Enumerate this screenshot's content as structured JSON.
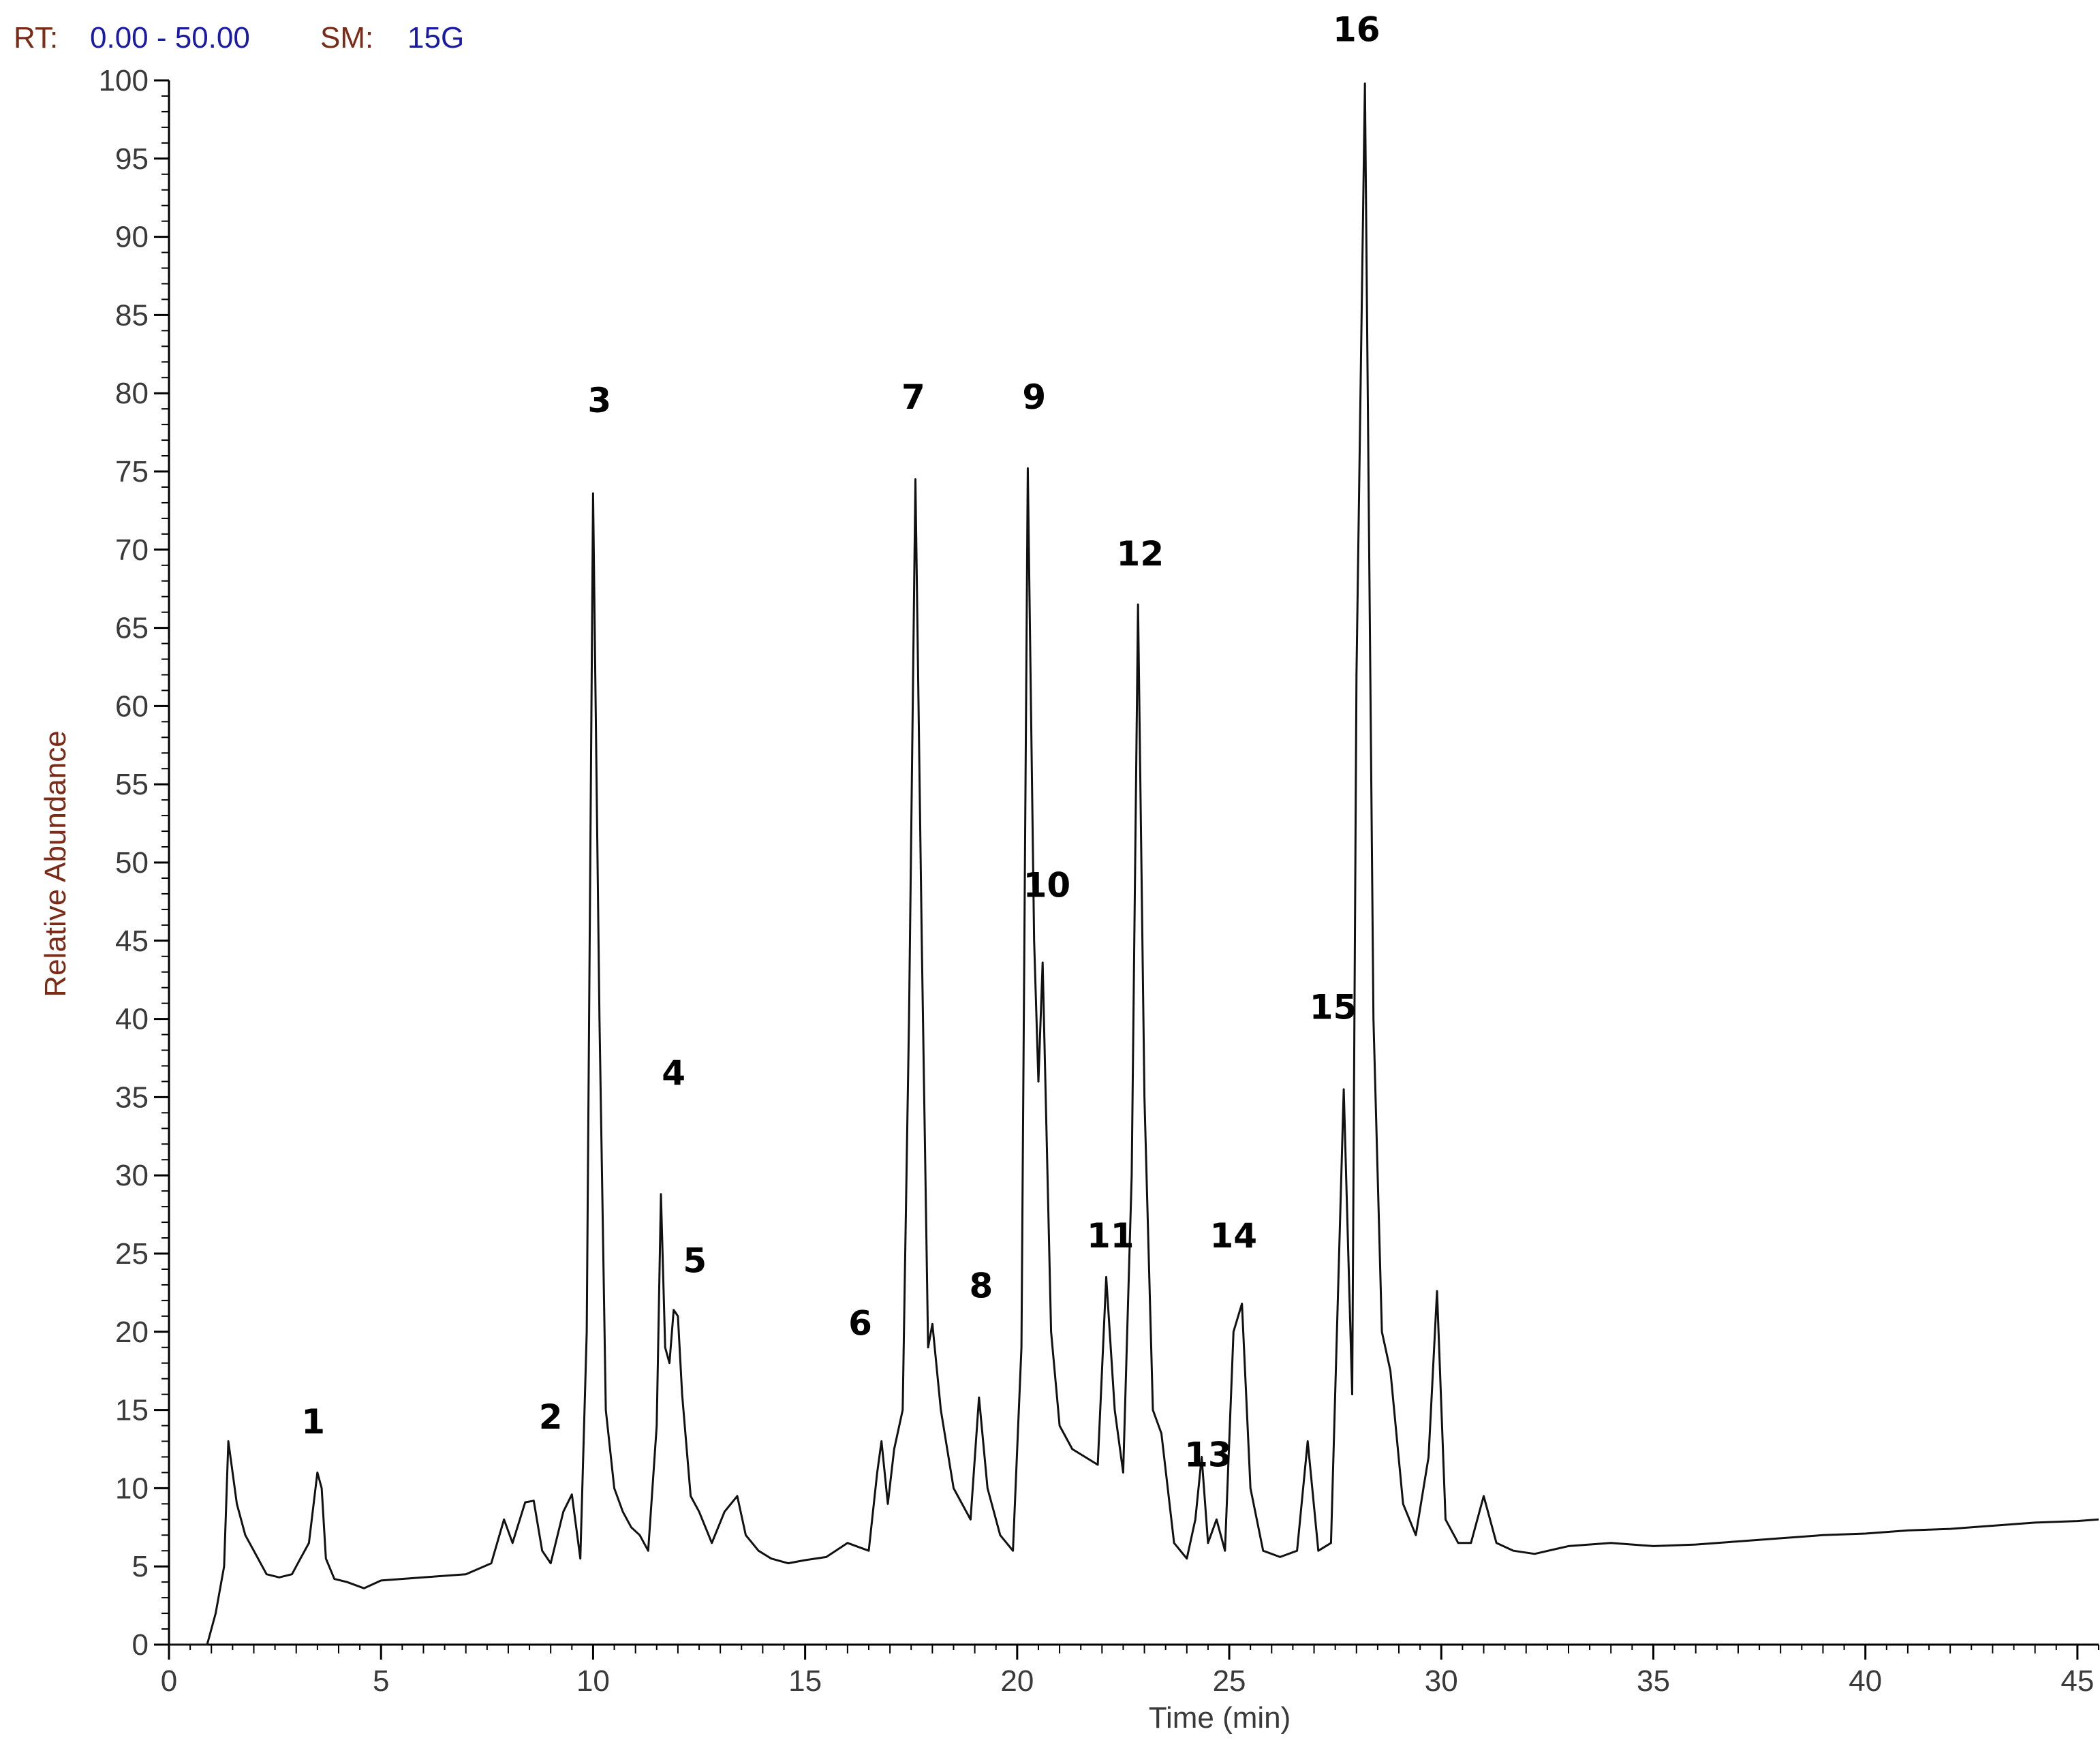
{
  "header": {
    "rt_key": "RT:",
    "rt_value": "0.00 - 50.00",
    "sm_key": "SM:",
    "sm_value": "15G"
  },
  "chart_data": {
    "type": "line",
    "xlabel": "Time (min)",
    "ylabel": "Relative Abundance",
    "xlim": [
      0,
      45.5
    ],
    "ylim": [
      0,
      100
    ],
    "x_ticks": [
      0,
      5,
      10,
      15,
      20,
      25,
      30,
      35,
      40,
      45
    ],
    "y_ticks": [
      0,
      5,
      10,
      15,
      20,
      25,
      30,
      35,
      40,
      45,
      50,
      55,
      60,
      65,
      70,
      75,
      80,
      85,
      90,
      95,
      100
    ],
    "grid": false,
    "line_color": "#111111",
    "series": [
      {
        "x": [
          0,
          0.9,
          1.1,
          1.3,
          1.4,
          1.6,
          1.8,
          2.0,
          2.3,
          2.6,
          2.9,
          3.1,
          3.3,
          3.5,
          3.6,
          3.7,
          3.9,
          4.2,
          4.6,
          5.0,
          6.0,
          7.0,
          7.6,
          7.9,
          8.1,
          8.4,
          8.6,
          8.8,
          9.0,
          9.3,
          9.5,
          9.7,
          9.85,
          10.0,
          10.15,
          10.3,
          10.5,
          10.7,
          10.9,
          11.1,
          11.3,
          11.5,
          11.6,
          11.7,
          11.8,
          11.9,
          12.0,
          12.1,
          12.3,
          12.5,
          12.8,
          13.1,
          13.4,
          13.6,
          13.9,
          14.2,
          14.6,
          15.0,
          15.5,
          16.0,
          16.5,
          16.7,
          16.8,
          16.95,
          17.1,
          17.3,
          17.45,
          17.6,
          17.75,
          17.9,
          18.0,
          18.2,
          18.5,
          18.9,
          19.1,
          19.3,
          19.6,
          19.9,
          20.1,
          20.25,
          20.4,
          20.5,
          20.6,
          20.8,
          21.0,
          21.3,
          21.6,
          21.9,
          22.1,
          22.3,
          22.5,
          22.7,
          22.85,
          23.0,
          23.2,
          23.4,
          23.7,
          24.0,
          24.2,
          24.35,
          24.5,
          24.7,
          24.9,
          25.1,
          25.3,
          25.5,
          25.8,
          26.2,
          26.6,
          26.85,
          27.1,
          27.4,
          27.7,
          27.9,
          28.0,
          28.2,
          28.4,
          28.6,
          28.8,
          29.1,
          29.4,
          29.7,
          29.9,
          30.1,
          30.4,
          30.7,
          31.0,
          31.3,
          31.7,
          32.2,
          33.0,
          34.0,
          35.0,
          36.0,
          37.0,
          38.0,
          39.0,
          40.0,
          41.0,
          42.0,
          43.0,
          44.0,
          45.0,
          45.5
        ],
        "y": [
          0,
          0,
          2,
          5,
          13,
          9,
          7,
          6,
          4.5,
          4.3,
          4.5,
          5.5,
          6.5,
          11,
          10,
          5.5,
          4.2,
          4,
          3.6,
          4.1,
          4.3,
          4.5,
          5.2,
          8,
          6.5,
          9.1,
          9.2,
          6,
          5.2,
          8.5,
          9.6,
          5.5,
          20,
          73.6,
          40,
          15,
          10,
          8.5,
          7.5,
          7,
          6,
          14,
          28.8,
          19,
          18,
          21.4,
          21,
          16,
          9.5,
          8.5,
          6.5,
          8.5,
          9.5,
          7,
          6,
          5.5,
          5.2,
          5.4,
          5.6,
          6.5,
          6,
          11,
          13,
          9,
          12.5,
          15,
          40,
          74.5,
          45,
          19,
          20.5,
          15,
          10,
          8,
          15.8,
          10,
          7,
          6,
          19,
          75.2,
          45,
          36,
          43.6,
          20,
          14,
          12.5,
          12,
          11.5,
          23.5,
          15,
          11,
          30,
          66.5,
          35,
          15,
          13.5,
          6.5,
          5.5,
          8,
          12,
          6.5,
          8,
          6,
          20,
          21.8,
          10,
          6,
          5.6,
          6,
          13,
          6,
          6.5,
          35.5,
          16,
          62,
          99.8,
          40,
          20,
          17.5,
          9,
          7,
          12,
          22.6,
          8,
          6.5,
          6.5,
          9.5,
          6.5,
          6,
          5.8,
          6.3,
          6.5,
          6.3,
          6.4,
          6.6,
          6.8,
          7,
          7.1,
          7.3,
          7.4,
          7.6,
          7.8,
          7.9,
          8
        ]
      }
    ],
    "annotations": [
      {
        "text": "1",
        "x": 3.4,
        "y": 13.5
      },
      {
        "text": "2",
        "x": 9.0,
        "y": 13.8
      },
      {
        "text": "3",
        "x": 10.15,
        "y": 78.8
      },
      {
        "text": "4",
        "x": 11.9,
        "y": 35.8
      },
      {
        "text": "5",
        "x": 12.4,
        "y": 23.8
      },
      {
        "text": "6",
        "x": 16.3,
        "y": 19.8
      },
      {
        "text": "7",
        "x": 17.55,
        "y": 79.0
      },
      {
        "text": "8",
        "x": 19.15,
        "y": 22.2
      },
      {
        "text": "9",
        "x": 20.4,
        "y": 79.0
      },
      {
        "text": "10",
        "x": 20.7,
        "y": 47.8
      },
      {
        "text": "11",
        "x": 22.2,
        "y": 25.4
      },
      {
        "text": "12",
        "x": 22.9,
        "y": 69.0
      },
      {
        "text": "13",
        "x": 24.5,
        "y": 11.4
      },
      {
        "text": "14",
        "x": 25.1,
        "y": 25.4
      },
      {
        "text": "15",
        "x": 27.45,
        "y": 40.0
      },
      {
        "text": "16",
        "x": 28.0,
        "y": 102.5
      }
    ]
  }
}
